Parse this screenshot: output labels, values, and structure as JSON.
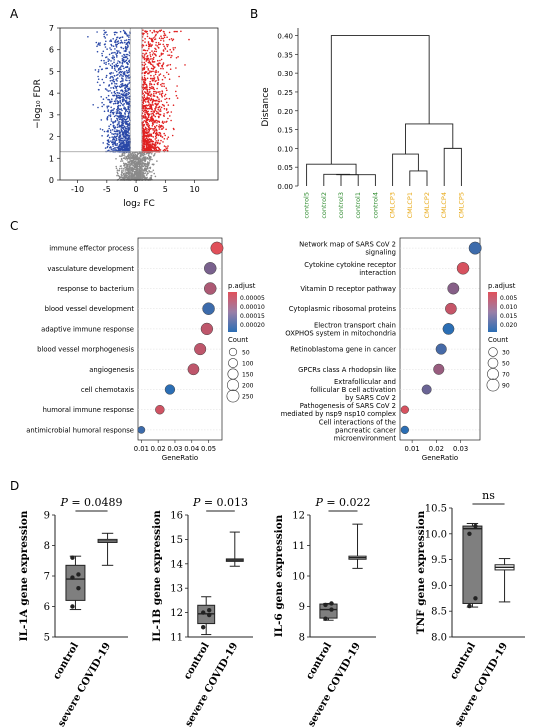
{
  "panel_labels": {
    "a": "A",
    "b": "B",
    "c": "C",
    "d": "D"
  },
  "chart_data": [
    {
      "id": "volcano",
      "type": "scatter",
      "title": "",
      "xlabel": "log₂ FC",
      "ylabel": "−log₁₀ FDR",
      "xlim": [
        -13,
        14
      ],
      "ylim": [
        0,
        7
      ],
      "xticks": [
        -10,
        -5,
        0,
        5,
        10
      ],
      "yticks": [
        0,
        1,
        2,
        3,
        4,
        5,
        6,
        7
      ],
      "threshold_lines": {
        "x": [
          -1,
          1
        ],
        "y": 1.3
      },
      "colors": {
        "down": "#2b49a8",
        "up": "#e02020",
        "ns": "#8a8a8a"
      },
      "series": [
        {
          "group": "down",
          "x_range": [
            -13,
            -1
          ],
          "y_range": [
            1.3,
            6.9
          ]
        },
        {
          "group": "up",
          "x_range": [
            1,
            13
          ],
          "y_range": [
            1.3,
            6.9
          ]
        },
        {
          "group": "ns",
          "x_range": [
            -4,
            4
          ],
          "y_range": [
            0,
            1.3
          ]
        }
      ]
    },
    {
      "id": "dendrogram",
      "type": "dendrogram",
      "ylabel": "Distance",
      "ylim": [
        0,
        0.42
      ],
      "yticks": [
        0.0,
        0.05,
        0.1,
        0.15,
        0.2,
        0.25,
        0.3,
        0.35,
        0.4
      ],
      "leaves": [
        {
          "label": "control5",
          "color": "#2e8b2e"
        },
        {
          "label": "control2",
          "color": "#2e8b2e"
        },
        {
          "label": "control3",
          "color": "#2e8b2e"
        },
        {
          "label": "control1",
          "color": "#2e8b2e"
        },
        {
          "label": "control4",
          "color": "#2e8b2e"
        },
        {
          "label": "CMLCP3",
          "color": "#e8a917"
        },
        {
          "label": "CMLCP1",
          "color": "#e8a917"
        },
        {
          "label": "CMLCP2",
          "color": "#e8a917"
        },
        {
          "label": "CMLCP4",
          "color": "#e8a917"
        },
        {
          "label": "CMLCP5",
          "color": "#e8a917"
        }
      ],
      "merges": [
        {
          "left": 2,
          "right": 3,
          "height": 0.03
        },
        {
          "left": 1,
          "right": "m0",
          "height": 0.031
        },
        {
          "left": "m1",
          "right": 4,
          "height": 0.03
        },
        {
          "left": 0,
          "right": "m2",
          "height": 0.058
        },
        {
          "left": 6,
          "right": 7,
          "height": 0.04
        },
        {
          "left": 5,
          "right": "m4",
          "height": 0.085
        },
        {
          "left": 8,
          "right": 9,
          "height": 0.1
        },
        {
          "left": "m5",
          "right": "m6",
          "height": 0.165
        },
        {
          "left": "m3",
          "right": "m7",
          "height": 0.4
        }
      ]
    },
    {
      "id": "go-dotplot",
      "type": "scatter",
      "xlabel": "GeneRatio",
      "xlim": [
        0.008,
        0.058
      ],
      "xticks": [
        0.01,
        0.02,
        0.03,
        0.04,
        0.05
      ],
      "xtick_labels": [
        "0.01",
        "0.02",
        "0.03",
        "0.04",
        "0.05"
      ],
      "color_label": "p.adjust",
      "color_ticks": [
        "0.00005",
        "0.00010",
        "0.00015",
        "0.00020"
      ],
      "size_label": "Count",
      "size_ticks": [
        "50",
        "100",
        "150",
        "200",
        "250"
      ],
      "terms": [
        {
          "label": "immune effector process",
          "ratio": 0.055,
          "count": 260,
          "padj": 1e-05
        },
        {
          "label": "vasculature development",
          "ratio": 0.051,
          "count": 240,
          "padj": 0.00013
        },
        {
          "label": "response to bacterium",
          "ratio": 0.051,
          "count": 230,
          "padj": 7e-05
        },
        {
          "label": "blood vessel development",
          "ratio": 0.05,
          "count": 230,
          "padj": 0.0002
        },
        {
          "label": "adaptive immune response",
          "ratio": 0.049,
          "count": 225,
          "padj": 5e-05
        },
        {
          "label": "blood vessel morphogenesis",
          "ratio": 0.045,
          "count": 210,
          "padj": 5e-05
        },
        {
          "label": "angiogenesis",
          "ratio": 0.041,
          "count": 190,
          "padj": 5e-05
        },
        {
          "label": "cell chemotaxis",
          "ratio": 0.027,
          "count": 120,
          "padj": 0.00022
        },
        {
          "label": "humoral immune response",
          "ratio": 0.021,
          "count": 95,
          "padj": 3e-05
        },
        {
          "label": "antimicrobial humoral response",
          "ratio": 0.01,
          "count": 40,
          "padj": 0.0002
        }
      ]
    },
    {
      "id": "kegg-dotplot",
      "type": "scatter",
      "xlabel": "GeneRatio",
      "xlim": [
        0.005,
        0.038
      ],
      "xticks": [
        0.01,
        0.02,
        0.03
      ],
      "xtick_labels": [
        "0.01",
        "0.02",
        "0.03"
      ],
      "color_label": "p.adjust",
      "color_ticks": [
        "0.005",
        "0.010",
        "0.015",
        "0.020"
      ],
      "size_label": "Count",
      "size_ticks": [
        "30",
        "50",
        "70",
        "90"
      ],
      "terms": [
        {
          "lines": [
            "Network map of SARS CoV 2",
            "signaling"
          ],
          "ratio": 0.036,
          "count": 95,
          "padj": 0.02
        },
        {
          "lines": [
            "Cytokine cytokine receptor",
            "interaction"
          ],
          "ratio": 0.031,
          "count": 85,
          "padj": 0.003
        },
        {
          "lines": [
            "Vitamin D receptor pathway"
          ],
          "ratio": 0.027,
          "count": 72,
          "padj": 0.012
        },
        {
          "lines": [
            "Cytoplasmic ribosomal proteins"
          ],
          "ratio": 0.026,
          "count": 70,
          "padj": 0.005
        },
        {
          "lines": [
            "Electron transport chain",
            "OXPHOS system in mitochondria"
          ],
          "ratio": 0.025,
          "count": 68,
          "padj": 0.022
        },
        {
          "lines": [
            "Retinoblastoma gene in cancer"
          ],
          "ratio": 0.022,
          "count": 60,
          "padj": 0.019
        },
        {
          "lines": [
            "GPCRs class A rhodopsin like"
          ],
          "ratio": 0.021,
          "count": 58,
          "padj": 0.01
        },
        {
          "lines": [
            "Extrafollicular and",
            "follicular B cell activation",
            "by SARS CoV 2"
          ],
          "ratio": 0.016,
          "count": 40,
          "padj": 0.015
        },
        {
          "lines": [
            "Pathogenesis of SARS CoV 2",
            "mediated by nsp9 nsp10 complex"
          ],
          "ratio": 0.007,
          "count": 20,
          "padj": 0.003
        },
        {
          "lines": [
            "Cell interactions of the",
            "pancreatic cancer",
            "microenvironment"
          ],
          "ratio": 0.007,
          "count": 20,
          "padj": 0.022
        }
      ]
    },
    {
      "id": "il1a",
      "type": "box",
      "ylabel": "IL-1A gene expression",
      "ylim": [
        5,
        9
      ],
      "yticks": [
        5,
        6,
        7,
        8,
        9
      ],
      "categories": [
        "control",
        "severe COVID-19"
      ],
      "pvalue": "= 0.0489",
      "boxes": [
        {
          "min": 5.9,
          "q1": 6.2,
          "median": 6.9,
          "q3": 7.35,
          "max": 7.65,
          "fill": "#7f7f7f",
          "points": [
            6.0,
            6.6,
            6.95,
            7.05,
            7.6
          ]
        },
        {
          "min": 7.35,
          "q1": 8.1,
          "median": 8.15,
          "q3": 8.2,
          "max": 8.4,
          "fill": "none",
          "points": []
        }
      ]
    },
    {
      "id": "il1b",
      "type": "box",
      "ylabel": "IL-1B gene expression",
      "ylim": [
        11,
        16
      ],
      "yticks": [
        11,
        12,
        13,
        14,
        15,
        16
      ],
      "categories": [
        "control",
        "severe COVID-19"
      ],
      "pvalue": "= 0.013",
      "boxes": [
        {
          "min": 11.1,
          "q1": 11.55,
          "median": 11.95,
          "q3": 12.3,
          "max": 12.65,
          "fill": "#7f7f7f",
          "points": [
            11.4,
            11.9,
            12.0,
            12.1
          ]
        },
        {
          "min": 13.9,
          "q1": 14.1,
          "median": 14.15,
          "q3": 14.2,
          "max": 15.3,
          "fill": "none",
          "points": []
        }
      ]
    },
    {
      "id": "il6",
      "type": "box",
      "ylabel": "IL-6 gene expression",
      "ylim": [
        8,
        12
      ],
      "yticks": [
        8,
        9,
        10,
        11,
        12
      ],
      "categories": [
        "control",
        "severe COVID-19"
      ],
      "pvalue": "= 0.022",
      "boxes": [
        {
          "min": 8.55,
          "q1": 8.62,
          "median": 8.9,
          "q3": 9.08,
          "max": 9.1,
          "fill": "#7f7f7f",
          "points": [
            8.6,
            8.9,
            9.05,
            9.1
          ]
        },
        {
          "min": 10.25,
          "q1": 10.55,
          "median": 10.6,
          "q3": 10.65,
          "max": 11.7,
          "fill": "none",
          "points": []
        }
      ]
    },
    {
      "id": "tnf",
      "type": "box",
      "ylabel": "TNF gene expression",
      "ylim": [
        8.0,
        10.5
      ],
      "yticks": [
        8.0,
        8.5,
        9.0,
        9.5,
        10.0,
        10.5
      ],
      "ytick_labels": [
        "8.0",
        "8.5",
        "9.0",
        "9.5",
        "10.0",
        "10.5"
      ],
      "categories": [
        "control",
        "severe COVID-19"
      ],
      "pvalue": "ns",
      "boxes": [
        {
          "min": 8.58,
          "q1": 8.65,
          "median": 10.1,
          "q3": 10.15,
          "max": 10.2,
          "fill": "#7f7f7f",
          "points": [
            8.6,
            8.75,
            10.0,
            10.15
          ]
        },
        {
          "min": 8.68,
          "q1": 9.3,
          "median": 9.35,
          "q3": 9.4,
          "max": 9.52,
          "fill": "none",
          "points": []
        }
      ]
    }
  ]
}
